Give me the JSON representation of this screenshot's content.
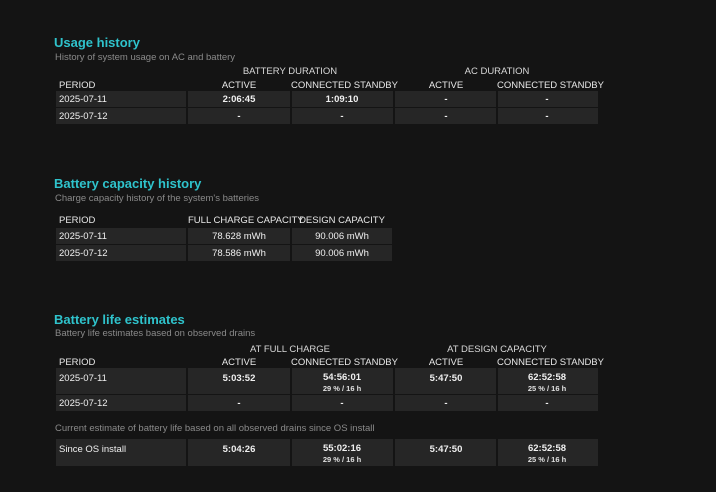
{
  "usage": {
    "title": "Usage history",
    "description": "History of system usage on AC and battery",
    "group_battery": "BATTERY DURATION",
    "group_ac": "AC DURATION",
    "col_period": "PERIOD",
    "col_active": "ACTIVE",
    "col_standby": "CONNECTED STANDBY",
    "rows": [
      {
        "period": "2025-07-11",
        "bat_active": "2:06:45",
        "bat_standby": "1:09:10",
        "ac_active": "-",
        "ac_standby": "-"
      },
      {
        "period": "2025-07-12",
        "bat_active": "-",
        "bat_standby": "-",
        "ac_active": "-",
        "ac_standby": "-"
      }
    ]
  },
  "capacity": {
    "title": "Battery capacity history",
    "description": "Charge capacity history of the system's batteries",
    "col_period": "PERIOD",
    "col_full": "FULL CHARGE CAPACITY",
    "col_design": "DESIGN CAPACITY",
    "rows": [
      {
        "period": "2025-07-11",
        "full": "78.628 mWh",
        "design": "90.006 mWh"
      },
      {
        "period": "2025-07-12",
        "full": "78.586 mWh",
        "design": "90.006 mWh"
      }
    ]
  },
  "estimates": {
    "title": "Battery life estimates",
    "description": "Battery life estimates based on observed drains",
    "group_full": "AT FULL CHARGE",
    "group_design": "AT DESIGN CAPACITY",
    "col_period": "PERIOD",
    "col_active": "ACTIVE",
    "col_standby": "CONNECTED STANDBY",
    "rows": [
      {
        "period": "2025-07-11",
        "full_active": "5:03:52",
        "full_standby": "54:56:01",
        "full_standby_sub": "29 % / 16 h",
        "design_active": "5:47:50",
        "design_standby": "62:52:58",
        "design_standby_sub": "25 % / 16 h"
      },
      {
        "period": "2025-07-12",
        "full_active": "-",
        "full_standby": "-",
        "design_active": "-",
        "design_standby": "-"
      }
    ],
    "current_note": "Current estimate of battery life based on all observed drains since OS install",
    "since": {
      "period": "Since OS install",
      "full_active": "5:04:26",
      "full_standby": "55:02:16",
      "full_standby_sub": "29 % / 16 h",
      "design_active": "5:47:50",
      "design_standby": "62:52:58",
      "design_standby_sub": "25 % / 16 h"
    }
  }
}
